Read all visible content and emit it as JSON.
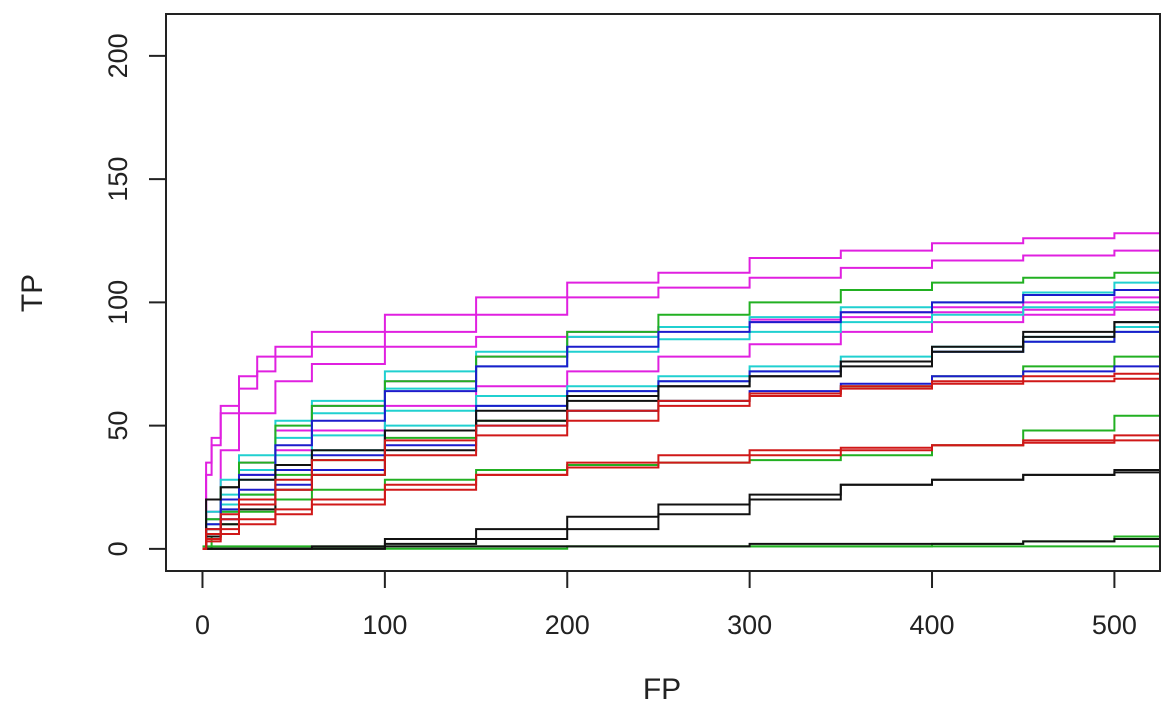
{
  "chart_data": {
    "type": "line",
    "xlabel": "FP",
    "ylabel": "TP",
    "xlim": [
      -20,
      525
    ],
    "ylim": [
      -9,
      217
    ],
    "x_ticks": [
      0,
      100,
      200,
      300,
      400,
      500
    ],
    "y_ticks": [
      0,
      50,
      100,
      150,
      200
    ],
    "grid": false,
    "legend": "none",
    "style": "step",
    "series": [
      {
        "color": "#e020e0",
        "x": [
          0,
          2,
          5,
          10,
          20,
          30,
          40,
          60,
          100,
          150,
          200,
          250,
          300,
          350,
          400,
          450,
          500,
          525
        ],
        "y": [
          0,
          35,
          45,
          58,
          70,
          78,
          82,
          88,
          95,
          102,
          108,
          112,
          118,
          121,
          124,
          126,
          128,
          133
        ]
      },
      {
        "color": "#e020e0",
        "x": [
          0,
          2,
          5,
          10,
          20,
          30,
          40,
          60,
          100,
          150,
          200,
          250,
          300,
          350,
          400,
          450,
          500,
          525
        ],
        "y": [
          0,
          30,
          42,
          55,
          65,
          72,
          78,
          82,
          88,
          95,
          102,
          106,
          110,
          114,
          117,
          119,
          121,
          121
        ]
      },
      {
        "color": "#e020e0",
        "x": [
          0,
          2,
          10,
          20,
          40,
          60,
          100,
          150,
          200,
          250,
          300,
          350,
          400,
          450,
          500,
          525
        ],
        "y": [
          0,
          20,
          40,
          55,
          68,
          75,
          82,
          86,
          88,
          90,
          92,
          94,
          96,
          97,
          98,
          99
        ]
      },
      {
        "color": "#e020e0",
        "x": [
          0,
          2,
          10,
          20,
          40,
          60,
          100,
          150,
          200,
          250,
          300,
          350,
          400,
          450,
          500,
          525
        ],
        "y": [
          0,
          15,
          25,
          35,
          48,
          58,
          68,
          78,
          86,
          90,
          93,
          96,
          98,
          100,
          102,
          104
        ]
      },
      {
        "color": "#e020e0",
        "x": [
          0,
          2,
          10,
          20,
          40,
          60,
          100,
          150,
          200,
          250,
          300,
          350,
          400,
          450,
          500,
          525
        ],
        "y": [
          0,
          12,
          20,
          30,
          40,
          48,
          58,
          66,
          72,
          78,
          83,
          88,
          92,
          95,
          97,
          98
        ]
      },
      {
        "color": "#20d0d0",
        "x": [
          0,
          2,
          10,
          20,
          40,
          60,
          100,
          150,
          200,
          250,
          300,
          350,
          400,
          450,
          500,
          525
        ],
        "y": [
          0,
          15,
          28,
          38,
          52,
          60,
          72,
          80,
          86,
          90,
          94,
          98,
          100,
          104,
          108,
          110
        ]
      },
      {
        "color": "#20d0d0",
        "x": [
          0,
          2,
          10,
          20,
          40,
          60,
          100,
          150,
          200,
          250,
          300,
          350,
          400,
          450,
          500,
          525
        ],
        "y": [
          0,
          12,
          22,
          32,
          45,
          55,
          65,
          74,
          80,
          85,
          88,
          92,
          95,
          98,
          100,
          102
        ]
      },
      {
        "color": "#20d0d0",
        "x": [
          0,
          2,
          10,
          20,
          40,
          60,
          100,
          150,
          200,
          250,
          300,
          350,
          400,
          450,
          500,
          525
        ],
        "y": [
          0,
          10,
          18,
          28,
          38,
          46,
          56,
          62,
          66,
          70,
          74,
          78,
          82,
          86,
          90,
          92
        ]
      },
      {
        "color": "#20d0d0",
        "x": [
          0,
          2,
          10,
          20,
          40,
          60,
          100,
          150,
          200,
          250,
          300,
          350,
          400,
          450,
          500,
          525
        ],
        "y": [
          0,
          8,
          15,
          22,
          32,
          40,
          50,
          58,
          64,
          68,
          72,
          76,
          80,
          84,
          88,
          90
        ]
      },
      {
        "color": "#22b022",
        "x": [
          0,
          2,
          10,
          20,
          40,
          60,
          100,
          150,
          200,
          250,
          300,
          350,
          400,
          450,
          500,
          525
        ],
        "y": [
          0,
          12,
          25,
          35,
          50,
          58,
          68,
          78,
          88,
          95,
          100,
          105,
          108,
          110,
          112,
          115
        ]
      },
      {
        "color": "#22b022",
        "x": [
          0,
          2,
          10,
          20,
          40,
          60,
          100,
          150,
          200,
          250,
          300,
          350,
          400,
          450,
          500,
          525
        ],
        "y": [
          0,
          8,
          15,
          22,
          30,
          36,
          45,
          52,
          56,
          60,
          63,
          66,
          70,
          74,
          78,
          80
        ]
      },
      {
        "color": "#22b022",
        "x": [
          0,
          5,
          10,
          20,
          40,
          60,
          100,
          150,
          200,
          250,
          300,
          350,
          400,
          450,
          500,
          525
        ],
        "y": [
          0,
          5,
          10,
          15,
          20,
          24,
          28,
          32,
          34,
          35,
          36,
          38,
          42,
          48,
          54,
          55
        ]
      },
      {
        "color": "#22b022",
        "x": [
          0,
          100,
          200,
          300,
          400,
          450,
          500,
          525
        ],
        "y": [
          0,
          0,
          1,
          1,
          2,
          3,
          5,
          9
        ]
      },
      {
        "color": "#22b022",
        "x": [
          0,
          100,
          200,
          300,
          400,
          500,
          525
        ],
        "y": [
          1,
          1,
          1,
          1,
          1,
          1,
          1
        ]
      },
      {
        "color": "#1c1ccc",
        "x": [
          0,
          2,
          10,
          20,
          40,
          60,
          100,
          150,
          200,
          250,
          300,
          350,
          400,
          450,
          500,
          525
        ],
        "y": [
          0,
          10,
          20,
          30,
          42,
          52,
          64,
          74,
          82,
          88,
          92,
          96,
          100,
          103,
          105,
          106
        ]
      },
      {
        "color": "#1c1ccc",
        "x": [
          0,
          2,
          10,
          20,
          40,
          60,
          100,
          150,
          200,
          250,
          300,
          350,
          400,
          450,
          500,
          525
        ],
        "y": [
          0,
          8,
          16,
          24,
          32,
          38,
          48,
          58,
          64,
          68,
          72,
          76,
          80,
          84,
          88,
          90
        ]
      },
      {
        "color": "#1c1ccc",
        "x": [
          0,
          2,
          10,
          20,
          40,
          60,
          100,
          150,
          200,
          250,
          300,
          350,
          400,
          450,
          500,
          525
        ],
        "y": [
          0,
          6,
          12,
          18,
          26,
          32,
          42,
          50,
          56,
          60,
          64,
          67,
          70,
          72,
          74,
          76
        ]
      },
      {
        "color": "#111111",
        "x": [
          0,
          2,
          10,
          20,
          40,
          60,
          100,
          150,
          200,
          250,
          300,
          350,
          400,
          450,
          500,
          525
        ],
        "y": [
          0,
          20,
          25,
          28,
          34,
          40,
          48,
          56,
          62,
          66,
          70,
          74,
          80,
          86,
          92,
          94
        ]
      },
      {
        "color": "#111111",
        "x": [
          0,
          2,
          10,
          20,
          40,
          60,
          100,
          150,
          200,
          250,
          300,
          350,
          400,
          450,
          500,
          525
        ],
        "y": [
          0,
          5,
          10,
          16,
          24,
          30,
          40,
          52,
          60,
          66,
          70,
          76,
          82,
          88,
          92,
          96
        ]
      },
      {
        "color": "#111111",
        "x": [
          0,
          50,
          100,
          150,
          200,
          250,
          300,
          350,
          400,
          450,
          500,
          525
        ],
        "y": [
          0,
          0,
          4,
          8,
          13,
          18,
          22,
          26,
          28,
          30,
          32,
          33
        ]
      },
      {
        "color": "#111111",
        "x": [
          0,
          60,
          100,
          150,
          200,
          250,
          300,
          350,
          400,
          450,
          500,
          525
        ],
        "y": [
          0,
          1,
          2,
          4,
          8,
          14,
          20,
          26,
          28,
          30,
          31,
          31
        ]
      },
      {
        "color": "#111111",
        "x": [
          0,
          100,
          200,
          300,
          400,
          450,
          500,
          525
        ],
        "y": [
          0,
          1,
          1,
          2,
          2,
          3,
          4,
          5
        ]
      },
      {
        "color": "#d01818",
        "x": [
          0,
          2,
          10,
          20,
          40,
          60,
          100,
          150,
          200,
          250,
          300,
          350,
          400,
          450,
          500,
          525
        ],
        "y": [
          0,
          8,
          14,
          20,
          28,
          36,
          44,
          50,
          56,
          60,
          63,
          66,
          68,
          70,
          71,
          72
        ]
      },
      {
        "color": "#d01818",
        "x": [
          0,
          2,
          10,
          20,
          40,
          60,
          100,
          150,
          200,
          250,
          300,
          350,
          400,
          450,
          500,
          525
        ],
        "y": [
          0,
          6,
          12,
          18,
          24,
          30,
          38,
          46,
          52,
          58,
          62,
          65,
          67,
          68,
          69,
          70
        ]
      },
      {
        "color": "#d01818",
        "x": [
          0,
          2,
          10,
          20,
          40,
          60,
          100,
          150,
          200,
          250,
          300,
          350,
          400,
          450,
          500,
          525
        ],
        "y": [
          0,
          4,
          8,
          12,
          16,
          20,
          26,
          30,
          33,
          35,
          38,
          40,
          42,
          44,
          46,
          47
        ]
      },
      {
        "color": "#d01818",
        "x": [
          0,
          2,
          10,
          20,
          40,
          60,
          100,
          150,
          200,
          250,
          300,
          350,
          400,
          450,
          500,
          525
        ],
        "y": [
          0,
          3,
          6,
          10,
          14,
          18,
          24,
          30,
          35,
          38,
          40,
          41,
          42,
          43,
          44,
          44
        ]
      }
    ]
  }
}
